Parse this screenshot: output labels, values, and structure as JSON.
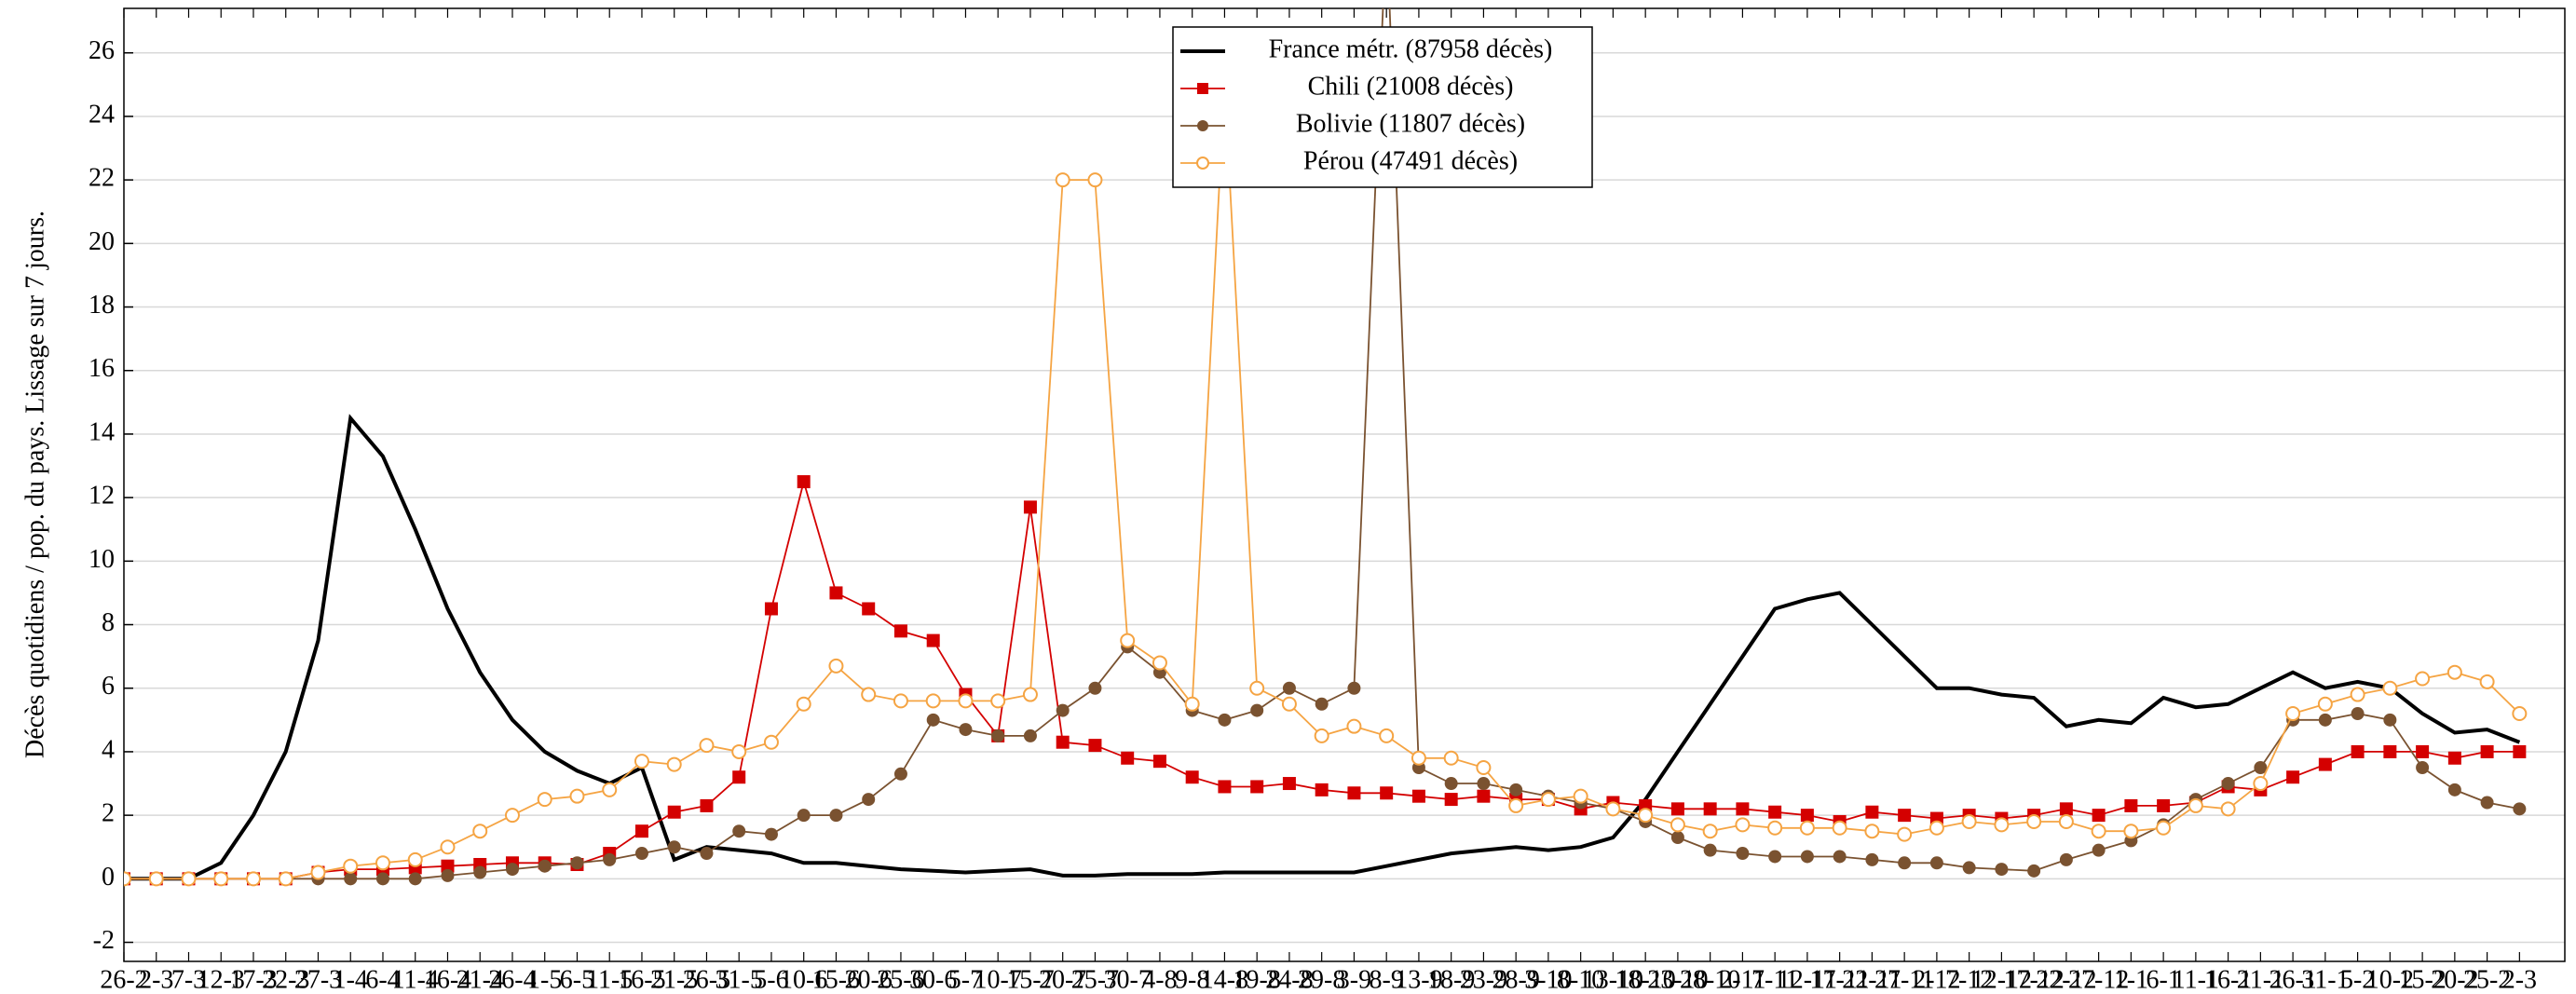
{
  "chart_data": {
    "type": "line",
    "y_label": "Décès quotidiens / pop. du pays. Lissage sur 7 jours.",
    "categories": [
      "26-2",
      "2-3",
      "7-3",
      "12-3",
      "17-3",
      "22-3",
      "27-3",
      "1-4",
      "6-4",
      "11-4",
      "16-4",
      "21-4",
      "26-4",
      "1-5",
      "6-5",
      "11-5",
      "16-5",
      "21-5",
      "26-5",
      "31-5",
      "5-6",
      "10-6",
      "15-6",
      "20-6",
      "25-6",
      "30-6",
      "5-7",
      "10-7",
      "15-7",
      "20-7",
      "25-7",
      "30-7",
      "4-8",
      "9-8",
      "14-8",
      "19-8",
      "24-8",
      "29-8",
      "3-9",
      "8-9",
      "13-9",
      "18-9",
      "23-9",
      "28-9",
      "3-10",
      "8-10",
      "13-10",
      "18-10",
      "23-10",
      "28-10",
      "2-11",
      "7-11",
      "12-11",
      "17-11",
      "22-11",
      "27-11",
      "2-12",
      "7-12",
      "12-12",
      "17-12",
      "22-12",
      "27-12",
      "1-1",
      "6-1",
      "11-1",
      "16-1",
      "21-1",
      "26-1",
      "31-1",
      "5-2",
      "10-2",
      "15-2",
      "20-2",
      "25-2",
      "2-3"
    ],
    "series": [
      {
        "name": "France métr. (87958 décès)",
        "color": "#000000",
        "marker": "none",
        "values": [
          0,
          0,
          0,
          0.5,
          2.0,
          4.0,
          7.5,
          14.5,
          13.3,
          11,
          8.5,
          6.5,
          5,
          4,
          3.4,
          3.0,
          3.5,
          0.6,
          1.0,
          0.9,
          0.8,
          0.5,
          0.5,
          0.4,
          0.3,
          0.25,
          0.2,
          0.25,
          0.3,
          0.1,
          0.1,
          0.15,
          0.15,
          0.15,
          0.2,
          0.2,
          0.2,
          0.2,
          0.2,
          0.4,
          0.6,
          0.8,
          0.9,
          1.0,
          0.9,
          1.0,
          1.3,
          2.5,
          4.0,
          5.5,
          7,
          8.5,
          8.8,
          9.0,
          8.0,
          7.0,
          6.0,
          6.0,
          5.8,
          5.7,
          4.8,
          5.0,
          4.9,
          5.7,
          5.4,
          5.5,
          6.0,
          6.5,
          6.0,
          6.2,
          6.0,
          5.2,
          4.6,
          4.7,
          4.3
        ]
      },
      {
        "name": "Chili (21008 décès)",
        "color": "#d40000",
        "marker": "square",
        "values": [
          0,
          0,
          0,
          0,
          0,
          0,
          0.2,
          0.3,
          0.3,
          0.35,
          0.4,
          0.45,
          0.5,
          0.5,
          0.45,
          0.8,
          1.5,
          2.1,
          2.3,
          3.2,
          8.5,
          12.5,
          9.0,
          8.5,
          7.8,
          7.5,
          5.8,
          4.5,
          11.7,
          4.3,
          4.2,
          3.8,
          3.7,
          3.2,
          2.9,
          2.9,
          3.0,
          2.8,
          2.7,
          2.7,
          2.6,
          2.5,
          2.6,
          2.5,
          2.5,
          2.2,
          2.4,
          2.3,
          2.2,
          2.2,
          2.2,
          2.1,
          2.0,
          1.8,
          2.1,
          2.0,
          1.9,
          2.0,
          1.9,
          2.0,
          2.2,
          2.0,
          2.3,
          2.3,
          2.4,
          2.9,
          2.8,
          3.2,
          3.6,
          4.0,
          4.0,
          4.0,
          3.8,
          4.0,
          4.0
        ]
      },
      {
        "name": "Bolivie (11807 décès)",
        "color": "#7a5230",
        "marker": "circle",
        "values": [
          0,
          0,
          0,
          0,
          0,
          0,
          0,
          0,
          0,
          0,
          0.1,
          0.2,
          0.3,
          0.4,
          0.5,
          0.6,
          0.8,
          1.0,
          0.8,
          1.5,
          1.4,
          2.0,
          2.0,
          2.5,
          3.3,
          5.0,
          4.7,
          4.5,
          4.5,
          5.3,
          6.0,
          7.3,
          6.5,
          5.3,
          5.0,
          5.3,
          6.0,
          5.5,
          6.0,
          30,
          3.5,
          3.0,
          3.0,
          2.8,
          2.6,
          2.4,
          2.2,
          1.8,
          1.3,
          0.9,
          0.8,
          0.7,
          0.7,
          0.7,
          0.6,
          0.5,
          0.5,
          0.35,
          0.3,
          0.25,
          0.6,
          0.9,
          1.2,
          1.7,
          2.5,
          3.0,
          3.5,
          5.0,
          5.0,
          5.2,
          5.0,
          3.5,
          2.8,
          2.4,
          2.2
        ]
      },
      {
        "name": "Pérou (47491 décès)",
        "color": "#f5a443",
        "marker": "circle-open",
        "values": [
          0,
          0,
          0,
          0,
          0,
          0,
          0.2,
          0.4,
          0.5,
          0.6,
          1.0,
          1.5,
          2.0,
          2.5,
          2.6,
          2.8,
          3.7,
          3.6,
          4.2,
          4.0,
          4.3,
          5.5,
          6.7,
          5.8,
          5.6,
          5.6,
          5.6,
          5.6,
          5.8,
          22.0,
          22.0,
          7.5,
          6.8,
          5.5,
          25,
          6.0,
          5.5,
          4.5,
          4.8,
          4.5,
          3.8,
          3.8,
          3.5,
          2.3,
          2.5,
          2.6,
          2.2,
          2.0,
          1.7,
          1.5,
          1.7,
          1.6,
          1.6,
          1.6,
          1.5,
          1.4,
          1.6,
          1.8,
          1.7,
          1.8,
          1.8,
          1.5,
          1.5,
          1.6,
          2.3,
          2.2,
          3.0,
          5.2,
          5.5,
          5.8,
          6.0,
          6.3,
          6.5,
          6.2,
          5.2
        ]
      }
    ],
    "ylim": [
      -2.6,
      27.4
    ],
    "yticks": [
      -2,
      0,
      2,
      4,
      6,
      8,
      10,
      12,
      14,
      16,
      18,
      20,
      22,
      24,
      26
    ],
    "grid": true,
    "legend": "upper center"
  }
}
